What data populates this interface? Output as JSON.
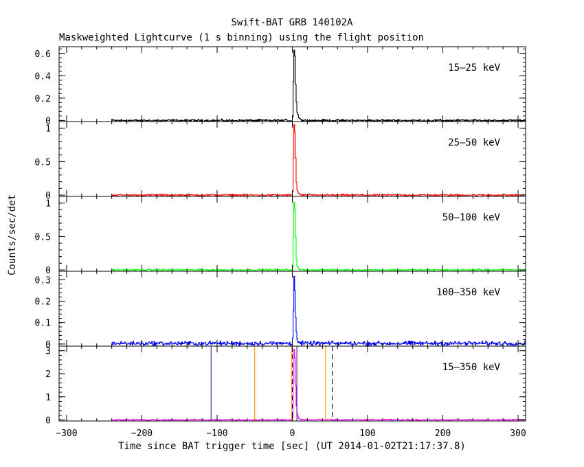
{
  "chart_data": {
    "type": "line",
    "title": "Swift-BAT GRB 140102A",
    "subtitle": "Maskweighted Lightcurve (1 s binning) using the flight position",
    "xlabel": "Time since BAT trigger time [sec] (UT 2014-01-02T21:17:37.8)",
    "ylabel": "Counts/sec/det",
    "xlim": [
      -310,
      310
    ],
    "xticks": [
      -300,
      -200,
      -100,
      0,
      100,
      200,
      300
    ],
    "data_start": -240,
    "panels": [
      {
        "name": "15-25 keV",
        "label": "15–25 keV",
        "color": "#000000",
        "ylim": [
          -0.01,
          0.66
        ],
        "yticks": [
          0,
          0.2,
          0.4,
          0.6
        ],
        "ytick_labels": [
          "0",
          "0.2",
          "0.4",
          "0.6"
        ],
        "baseline": 0.0,
        "noise": 0.008,
        "profile": [
          [
            0,
            0.03
          ],
          [
            1,
            0.35
          ],
          [
            2,
            0.63
          ],
          [
            3,
            0.58
          ],
          [
            4,
            0.32
          ],
          [
            5,
            0.16
          ],
          [
            6,
            0.08
          ],
          [
            8,
            0.03
          ],
          [
            12,
            0.0
          ]
        ]
      },
      {
        "name": "25-50 keV",
        "label": "25–50 keV",
        "color": "#ff0000",
        "ylim": [
          -0.02,
          1.1
        ],
        "yticks": [
          0,
          0.5,
          1
        ],
        "ytick_labels": [
          "0",
          "0.5",
          "1"
        ],
        "baseline": 0.0,
        "noise": 0.01,
        "profile": [
          [
            0,
            0.05
          ],
          [
            1,
            0.55
          ],
          [
            2,
            1.05
          ],
          [
            3,
            0.95
          ],
          [
            4,
            0.55
          ],
          [
            5,
            0.2
          ],
          [
            6,
            0.08
          ],
          [
            8,
            0.02
          ],
          [
            12,
            0.0
          ]
        ]
      },
      {
        "name": "50-100 keV",
        "label": "50–100 keV",
        "color": "#00ff00",
        "ylim": [
          -0.02,
          1.1
        ],
        "yticks": [
          0,
          0.5,
          1
        ],
        "ytick_labels": [
          "0",
          "0.5",
          "1"
        ],
        "baseline": 0.0,
        "noise": 0.01,
        "profile": [
          [
            0,
            0.05
          ],
          [
            1,
            0.5
          ],
          [
            2,
            1.0
          ],
          [
            3,
            0.92
          ],
          [
            4,
            0.5
          ],
          [
            5,
            0.15
          ],
          [
            6,
            0.05
          ],
          [
            8,
            0.01
          ],
          [
            12,
            0.0
          ]
        ]
      },
      {
        "name": "100-350 keV",
        "label": "100–350 keV",
        "color": "#0000ff",
        "ylim": [
          -0.01,
          0.34
        ],
        "yticks": [
          0,
          0.1,
          0.2,
          0.3
        ],
        "ytick_labels": [
          "0",
          "0.1",
          "0.2",
          "0.3"
        ],
        "baseline": 0.003,
        "noise": 0.008,
        "profile": [
          [
            0,
            0.03
          ],
          [
            1,
            0.15
          ],
          [
            2,
            0.32
          ],
          [
            3,
            0.25
          ],
          [
            4,
            0.12
          ],
          [
            5,
            0.05
          ],
          [
            6,
            0.02
          ],
          [
            8,
            0.0
          ]
        ]
      },
      {
        "name": "15-350 keV",
        "label": "15–350 keV",
        "color": "#ff00ff",
        "ylim": [
          -0.05,
          3.2
        ],
        "yticks": [
          0,
          1,
          2,
          3
        ],
        "ytick_labels": [
          "0",
          "1",
          "2",
          "3"
        ],
        "baseline": 0.0,
        "noise": 0.02,
        "profile": [
          [
            0,
            0.1
          ],
          [
            1,
            1.6
          ],
          [
            2,
            3.05
          ],
          [
            3,
            2.7
          ],
          [
            4,
            1.5
          ],
          [
            5,
            0.6
          ],
          [
            6,
            0.25
          ],
          [
            8,
            0.06
          ],
          [
            12,
            0.0
          ]
        ],
        "vlines": [
          {
            "x": -108,
            "color": "#4b0082",
            "style": "solid"
          },
          {
            "x": -50,
            "color": "#ff8c00",
            "style": "solid"
          },
          {
            "x": -1,
            "color": "#ff8c00",
            "style": "solid"
          },
          {
            "x": 0,
            "color": "#000000",
            "style": "dashed"
          },
          {
            "x": 6,
            "color": "#4b0082",
            "style": "solid"
          },
          {
            "x": 44,
            "color": "#ff8c00",
            "style": "solid"
          },
          {
            "x": 53,
            "color": "#000000",
            "style": "dashed"
          }
        ]
      }
    ]
  }
}
